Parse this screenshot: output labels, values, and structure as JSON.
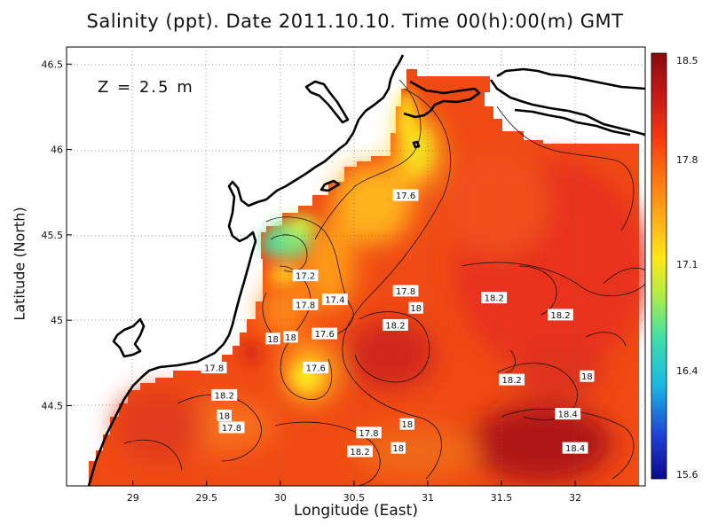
{
  "title": "Salinity (ppt). Date 2011.10.10. Time 00(h):00(m) GMT",
  "depth_label": "Z = 2.5 m",
  "xlabel": "Longitude (East)",
  "ylabel": "Latitude (North)",
  "x_ticks": [
    "29",
    "29.5",
    "30",
    "30.5",
    "31",
    "31.5",
    "32"
  ],
  "y_ticks": [
    "44.5",
    "45",
    "45.5",
    "46",
    "46.5"
  ],
  "colorbar": {
    "ticks": [
      "18.5",
      "17.8",
      "17.1",
      "16.4",
      "15.6"
    ],
    "colors": [
      "#0a0a8c",
      "#1f3fd6",
      "#19b8e6",
      "#3ee0a8",
      "#b8ee40",
      "#ffe61a",
      "#ffb41a",
      "#ff7a10",
      "#f53a10",
      "#c81818",
      "#8c0a0a"
    ]
  },
  "contour_labels": [
    {
      "text": "17.6",
      "lon": 30.85,
      "lat": 45.73
    },
    {
      "text": "17.2",
      "lon": 30.17,
      "lat": 45.26
    },
    {
      "text": "17.4",
      "lon": 30.37,
      "lat": 45.12
    },
    {
      "text": "17.8",
      "lon": 30.85,
      "lat": 45.17
    },
    {
      "text": "17.8",
      "lon": 30.17,
      "lat": 45.09
    },
    {
      "text": "18",
      "lon": 30.92,
      "lat": 45.07
    },
    {
      "text": "18.2",
      "lon": 31.45,
      "lat": 45.13
    },
    {
      "text": "18.2",
      "lon": 31.9,
      "lat": 45.03
    },
    {
      "text": "18.2",
      "lon": 30.78,
      "lat": 44.97
    },
    {
      "text": "17.6",
      "lon": 30.3,
      "lat": 44.92
    },
    {
      "text": "18",
      "lon": 29.95,
      "lat": 44.89
    },
    {
      "text": "18",
      "lon": 30.07,
      "lat": 44.9
    },
    {
      "text": "17.6",
      "lon": 30.24,
      "lat": 44.72
    },
    {
      "text": "17.8",
      "lon": 29.55,
      "lat": 44.72
    },
    {
      "text": "18.2",
      "lon": 29.62,
      "lat": 44.56
    },
    {
      "text": "18.2",
      "lon": 31.57,
      "lat": 44.65
    },
    {
      "text": "18",
      "lon": 32.08,
      "lat": 44.67
    },
    {
      "text": "18.4",
      "lon": 31.95,
      "lat": 44.45
    },
    {
      "text": "18",
      "lon": 29.62,
      "lat": 44.44
    },
    {
      "text": "18",
      "lon": 30.86,
      "lat": 44.39
    },
    {
      "text": "17.8",
      "lon": 29.67,
      "lat": 44.37
    },
    {
      "text": "17.8",
      "lon": 30.6,
      "lat": 44.34
    },
    {
      "text": "18.4",
      "lon": 32.0,
      "lat": 44.25
    },
    {
      "text": "18.2",
      "lon": 30.54,
      "lat": 44.23
    },
    {
      "text": "18",
      "lon": 30.8,
      "lat": 44.25
    }
  ]
}
